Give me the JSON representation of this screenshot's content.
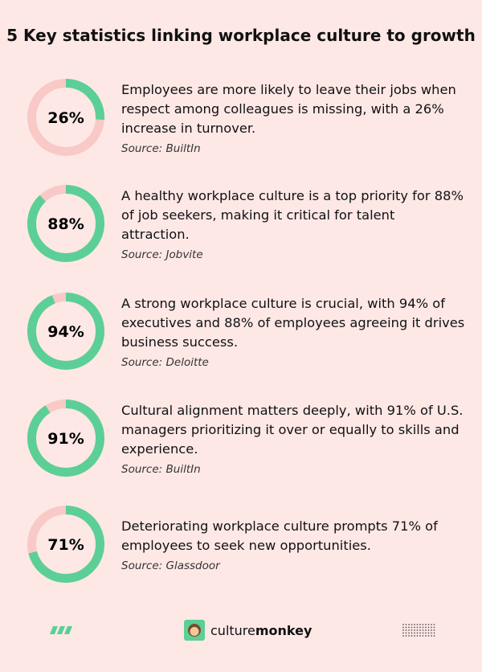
{
  "title": "5 Key statistics linking workplace culture to growth",
  "stats": [
    {
      "value": 26,
      "label": "26%",
      "text": "Employees are more likely to leave their jobs when respect among colleagues is missing, with a 26% increase in turnover.",
      "source": "Source: BuiltIn"
    },
    {
      "value": 88,
      "label": "88%",
      "text": "A healthy workplace culture is a top priority for 88% of job seekers, making it critical for talent attraction.",
      "source": "Source: Jobvite"
    },
    {
      "value": 94,
      "label": "94%",
      "text": "A strong workplace culture is crucial, with 94% of executives and 88% of employees agreeing it drives business success.",
      "source": "Source: Deloitte"
    },
    {
      "value": 91,
      "label": "91%",
      "text": "Cultural alignment matters deeply, with 91% of U.S. managers prioritizing it over or equally to skills and experience.",
      "source": "Source: BuiltIn"
    },
    {
      "value": 71,
      "label": "71%",
      "text": "Deteriorating workplace culture prompts 71% of employees to seek new opportunities.",
      "source": "Source: Glassdoor"
    }
  ],
  "brand": {
    "light": "culture",
    "bold": "monkey"
  }
}
